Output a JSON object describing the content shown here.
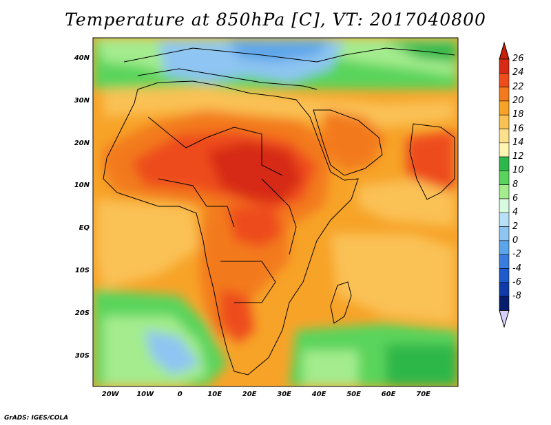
{
  "title": "Temperature at 850hPa [C], VT: 2017040800",
  "credit": "GrADS: IGES/COLA",
  "map": {
    "domain_lon": [
      -25,
      80
    ],
    "domain_lat": [
      -37,
      45
    ],
    "lat_ticks": [
      {
        "label": "40N",
        "value": 40
      },
      {
        "label": "30N",
        "value": 30
      },
      {
        "label": "20N",
        "value": 20
      },
      {
        "label": "10N",
        "value": 10
      },
      {
        "label": "EQ",
        "value": 0
      },
      {
        "label": "10S",
        "value": -10
      },
      {
        "label": "20S",
        "value": -20
      },
      {
        "label": "30S",
        "value": -30
      }
    ],
    "lon_ticks": [
      {
        "label": "20W",
        "value": -20
      },
      {
        "label": "10W",
        "value": -10
      },
      {
        "label": "0",
        "value": 0
      },
      {
        "label": "10E",
        "value": 10
      },
      {
        "label": "20E",
        "value": 20
      },
      {
        "label": "30E",
        "value": 30
      },
      {
        "label": "40E",
        "value": 40
      },
      {
        "label": "50E",
        "value": 50
      },
      {
        "label": "60E",
        "value": 60
      },
      {
        "label": "70E",
        "value": 70
      }
    ]
  },
  "colorbar": {
    "labels": [
      "26",
      "24",
      "22",
      "20",
      "18",
      "16",
      "14",
      "12",
      "10",
      "8",
      "6",
      "4",
      "2",
      "0",
      "-2",
      "-4",
      "-6",
      "-8"
    ],
    "colors": [
      "#d62a14",
      "#ee4c1d",
      "#f37a1e",
      "#f7a328",
      "#fac154",
      "#fde08c",
      "#fff5b0",
      "#2eb74a",
      "#5ad45c",
      "#a4ec8e",
      "#d8fae0",
      "#b8e0f8",
      "#8ec5f2",
      "#5da5ea",
      "#3a7ddf",
      "#1f5ccb",
      "#0f3aa8",
      "#061d6e"
    ],
    "top_arrow_color": "#c81e0a",
    "bottom_arrow_color": "#d8d0ff"
  }
}
